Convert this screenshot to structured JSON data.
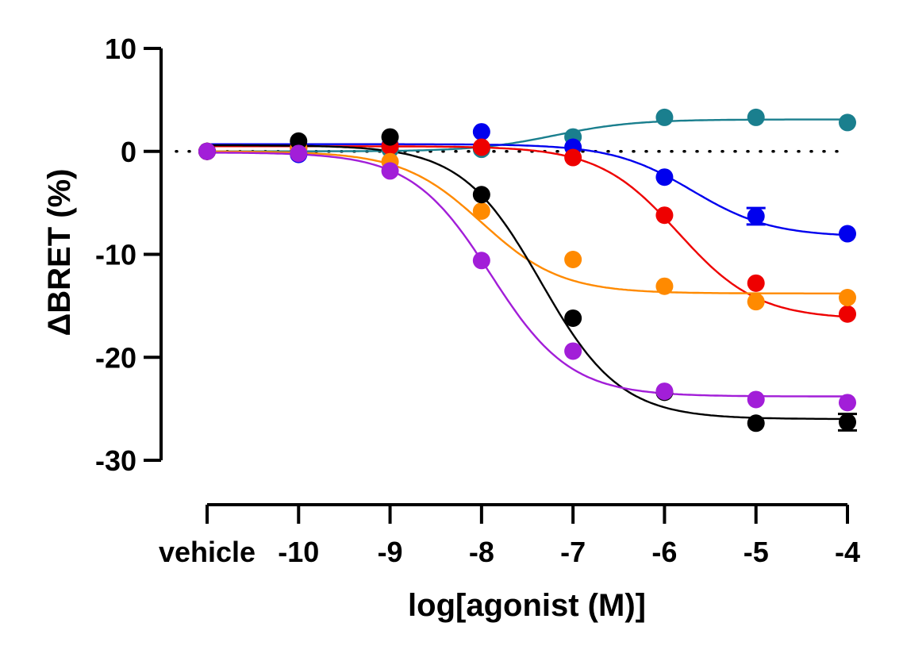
{
  "chart_data": {
    "type": "scatter",
    "xlabel": "log[agonist (M)]",
    "ylabel": "ΔBRET (%)",
    "x_ticks": [
      {
        "x": -11,
        "label": "vehicle"
      },
      {
        "x": -10,
        "label": "-10"
      },
      {
        "x": -9,
        "label": "-9"
      },
      {
        "x": -8,
        "label": "-8"
      },
      {
        "x": -7,
        "label": "-7"
      },
      {
        "x": -6,
        "label": "-6"
      },
      {
        "x": -5,
        "label": "-5"
      },
      {
        "x": -4,
        "label": "-4"
      }
    ],
    "y_ticks": [
      {
        "y": 10,
        "label": "10"
      },
      {
        "y": 0,
        "label": "0"
      },
      {
        "y": -10,
        "label": "-10"
      },
      {
        "y": -20,
        "label": "-20"
      },
      {
        "y": -30,
        "label": "-30"
      }
    ],
    "xlim": [
      -11,
      -4
    ],
    "ylim": [
      -30,
      10
    ],
    "baseline": {
      "y": 0,
      "style": "dotted"
    },
    "grid": false,
    "series": [
      {
        "color": "#1a7f8e",
        "points": [
          [
            -11,
            0.0
          ],
          [
            -10,
            0.3
          ],
          [
            -9,
            0.2
          ],
          [
            -8,
            0.2
          ],
          [
            -7,
            1.4
          ],
          [
            -6,
            3.3
          ],
          [
            -5,
            3.3
          ],
          [
            -4,
            2.8
          ]
        ],
        "fit": {
          "bottom": 0.0,
          "top": 3.1,
          "logec50": -7.2,
          "hill": 1.0
        }
      },
      {
        "color": "#0000ee",
        "points": [
          [
            -11,
            0.0
          ],
          [
            -10,
            -0.3
          ],
          [
            -9,
            0.6
          ],
          [
            -8,
            1.9
          ],
          [
            -7,
            0.4
          ],
          [
            -6,
            -2.5
          ],
          [
            -5,
            -6.3
          ],
          [
            -4,
            -8.0
          ]
        ],
        "error": [
          [
            -5,
            0.8
          ]
        ],
        "fit": {
          "bottom": 0.7,
          "top": -8.3,
          "logec50": -5.7,
          "hill": 1.0
        }
      },
      {
        "color": "#ee0000",
        "points": [
          [
            -11,
            0.0
          ],
          [
            -10,
            0.4
          ],
          [
            -9,
            0.5
          ],
          [
            -8,
            0.4
          ],
          [
            -7,
            -0.6
          ],
          [
            -6,
            -6.2
          ],
          [
            -5,
            -12.8
          ],
          [
            -4,
            -15.8
          ]
        ],
        "fit": {
          "bottom": 0.5,
          "top": -16.3,
          "logec50": -5.85,
          "hill": 1.0
        }
      },
      {
        "color": "#ff8a00",
        "points": [
          [
            -11,
            0.0
          ],
          [
            -10,
            0.3
          ],
          [
            -9,
            -1.0
          ],
          [
            -8,
            -5.8
          ],
          [
            -7,
            -10.5
          ],
          [
            -6,
            -13.1
          ],
          [
            -5,
            -14.6
          ],
          [
            -4,
            -14.2
          ]
        ],
        "fit": {
          "bottom": 0.0,
          "top": -13.8,
          "logec50": -8.0,
          "hill": 1.0
        }
      },
      {
        "color": "#000000",
        "points": [
          [
            -11,
            0.0
          ],
          [
            -10,
            1.0
          ],
          [
            -9,
            1.4
          ],
          [
            -8,
            -4.2
          ],
          [
            -7,
            -16.2
          ],
          [
            -6,
            -23.4
          ],
          [
            -5,
            -26.4
          ],
          [
            -4,
            -26.3
          ]
        ],
        "error": [
          [
            -4,
            0.8
          ]
        ],
        "fit": {
          "bottom": 0.6,
          "top": -26.0,
          "logec50": -7.35,
          "hill": 1.0
        }
      },
      {
        "color": "#a21ed8",
        "points": [
          [
            -11,
            0.0
          ],
          [
            -10,
            -0.2
          ],
          [
            -9,
            -1.9
          ],
          [
            -8,
            -10.6
          ],
          [
            -7,
            -19.4
          ],
          [
            -6,
            -23.3
          ],
          [
            -5,
            -24.1
          ],
          [
            -4,
            -24.4
          ]
        ],
        "fit": {
          "bottom": -0.1,
          "top": -23.8,
          "logec50": -7.9,
          "hill": 1.0
        }
      }
    ]
  }
}
